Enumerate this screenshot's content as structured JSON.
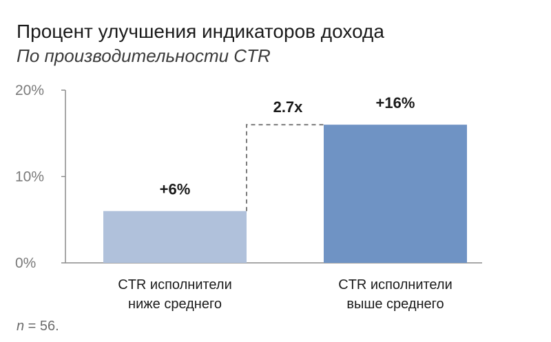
{
  "chart_data": {
    "type": "bar",
    "title": "Процент улучшения индикаторов дохода",
    "subtitle": "По производительности CTR",
    "categories": [
      [
        "CTR исполнители",
        "ниже среднего"
      ],
      [
        "CTR исполнители",
        "выше среднего"
      ]
    ],
    "values": [
      6,
      16
    ],
    "data_labels": [
      "+6%",
      "+16%"
    ],
    "y_ticks": [
      {
        "value": 0,
        "label": "0%"
      },
      {
        "value": 10,
        "label": "10%"
      },
      {
        "value": 20,
        "label": "20%"
      }
    ],
    "ylim": [
      0,
      20
    ],
    "annotation": "2.7x",
    "bar_colors": [
      "#b0c1db",
      "#6f93c4"
    ],
    "grid": false
  },
  "note": {
    "symbol": "n",
    "rest": " = 56."
  }
}
